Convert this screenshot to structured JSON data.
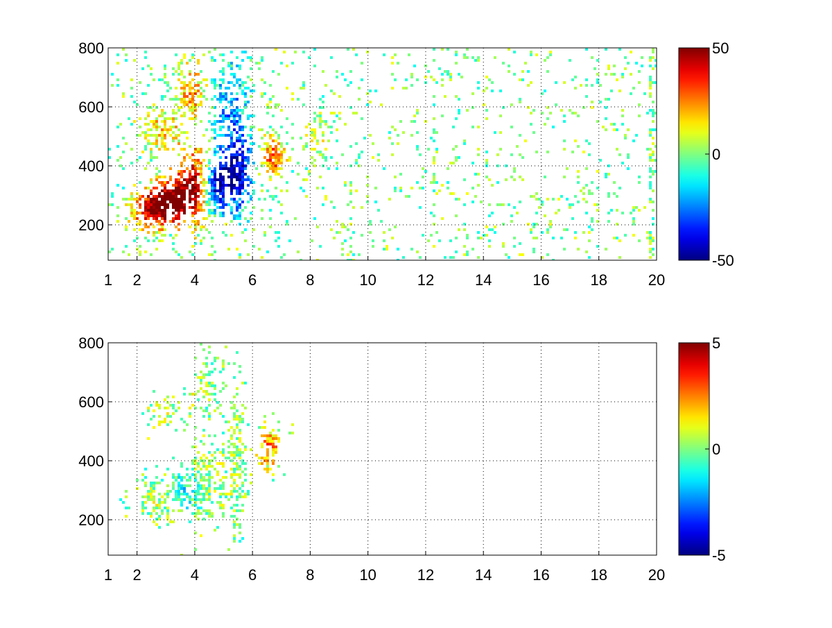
{
  "figure": {
    "background": "#ffffff",
    "colormap": "jet",
    "grid": "dotted"
  },
  "chart_data": [
    {
      "type": "heatmap",
      "title": "",
      "xlabel": "",
      "ylabel": "",
      "xlim": [
        1,
        20
      ],
      "ylim": [
        80,
        800
      ],
      "xticks": [
        1,
        2,
        4,
        6,
        8,
        10,
        12,
        14,
        16,
        18,
        20
      ],
      "xtick_labels": [
        "1",
        "2",
        "4",
        "6",
        "8",
        "10",
        "12",
        "14",
        "16",
        "18",
        "20"
      ],
      "yticks": [
        200,
        400,
        600,
        800
      ],
      "ytick_labels": [
        "200",
        "400",
        "600",
        "800"
      ],
      "grid": true,
      "colorbar": {
        "min": -50,
        "max": 50,
        "ticks": [
          -50,
          0,
          50
        ],
        "tick_labels": [
          "-50",
          "0",
          "50"
        ],
        "colormap": "jet"
      },
      "features": [
        {
          "x": 2.6,
          "y": 255,
          "value": 45,
          "sx": 0.55,
          "sy": 45,
          "density": 0.85
        },
        {
          "x": 3.3,
          "y": 290,
          "value": 38,
          "sx": 0.5,
          "sy": 55,
          "density": 0.8
        },
        {
          "x": 4.0,
          "y": 340,
          "value": 42,
          "sx": 0.4,
          "sy": 90,
          "density": 0.75
        },
        {
          "x": 2.8,
          "y": 520,
          "value": 18,
          "sx": 0.5,
          "sy": 45,
          "density": 0.55
        },
        {
          "x": 3.9,
          "y": 640,
          "value": 22,
          "sx": 0.4,
          "sy": 80,
          "density": 0.55
        },
        {
          "x": 4.7,
          "y": 330,
          "value": -42,
          "sx": 0.35,
          "sy": 60,
          "density": 0.8
        },
        {
          "x": 5.5,
          "y": 370,
          "value": -38,
          "sx": 0.35,
          "sy": 90,
          "density": 0.75
        },
        {
          "x": 5.2,
          "y": 580,
          "value": -22,
          "sx": 0.5,
          "sy": 150,
          "density": 0.45
        },
        {
          "x": 6.7,
          "y": 430,
          "value": 30,
          "sx": 0.3,
          "sy": 45,
          "density": 0.65
        },
        {
          "x": 8.2,
          "y": 500,
          "value": 8,
          "sx": 0.35,
          "sy": 60,
          "density": 0.35
        }
      ],
      "background_noise": {
        "density": 0.07,
        "value_range": [
          -12,
          12
        ]
      },
      "bright_columns": [
        9.4,
        12.3,
        19.8
      ],
      "seed": 7
    },
    {
      "type": "heatmap",
      "title": "",
      "xlabel": "",
      "ylabel": "",
      "xlim": [
        1,
        20
      ],
      "ylim": [
        80,
        800
      ],
      "xticks": [
        1,
        2,
        4,
        6,
        8,
        10,
        12,
        14,
        16,
        18,
        20
      ],
      "xtick_labels": [
        "1",
        "2",
        "4",
        "6",
        "8",
        "10",
        "12",
        "14",
        "16",
        "18",
        "20"
      ],
      "yticks": [
        200,
        400,
        600,
        800
      ],
      "ytick_labels": [
        "200",
        "400",
        "600",
        "800"
      ],
      "grid": true,
      "colorbar": {
        "min": -5,
        "max": 5,
        "ticks": [
          -5,
          0,
          5
        ],
        "tick_labels": [
          "-5",
          "0",
          "5"
        ],
        "colormap": "jet"
      },
      "features": [
        {
          "x": 2.8,
          "y": 270,
          "value": 0.5,
          "sx": 0.45,
          "sy": 45,
          "density": 0.7
        },
        {
          "x": 3.6,
          "y": 300,
          "value": -1.5,
          "sx": 0.4,
          "sy": 45,
          "density": 0.75
        },
        {
          "x": 4.5,
          "y": 330,
          "value": 0.3,
          "sx": 0.45,
          "sy": 90,
          "density": 0.7
        },
        {
          "x": 5.4,
          "y": 390,
          "value": 0.2,
          "sx": 0.3,
          "sy": 150,
          "density": 0.55
        },
        {
          "x": 4.6,
          "y": 660,
          "value": 0.2,
          "sx": 0.35,
          "sy": 90,
          "density": 0.4
        },
        {
          "x": 2.9,
          "y": 560,
          "value": 0.8,
          "sx": 0.4,
          "sy": 35,
          "density": 0.35
        },
        {
          "x": 3.8,
          "y": 620,
          "value": 0.5,
          "sx": 0.25,
          "sy": 60,
          "density": 0.3
        },
        {
          "x": 6.6,
          "y": 440,
          "value": 2.5,
          "sx": 0.3,
          "sy": 55,
          "density": 0.6
        }
      ],
      "background_noise": {
        "density": 0.0,
        "value_range": [
          -1,
          1
        ]
      },
      "bright_columns": [],
      "seed": 11
    }
  ]
}
